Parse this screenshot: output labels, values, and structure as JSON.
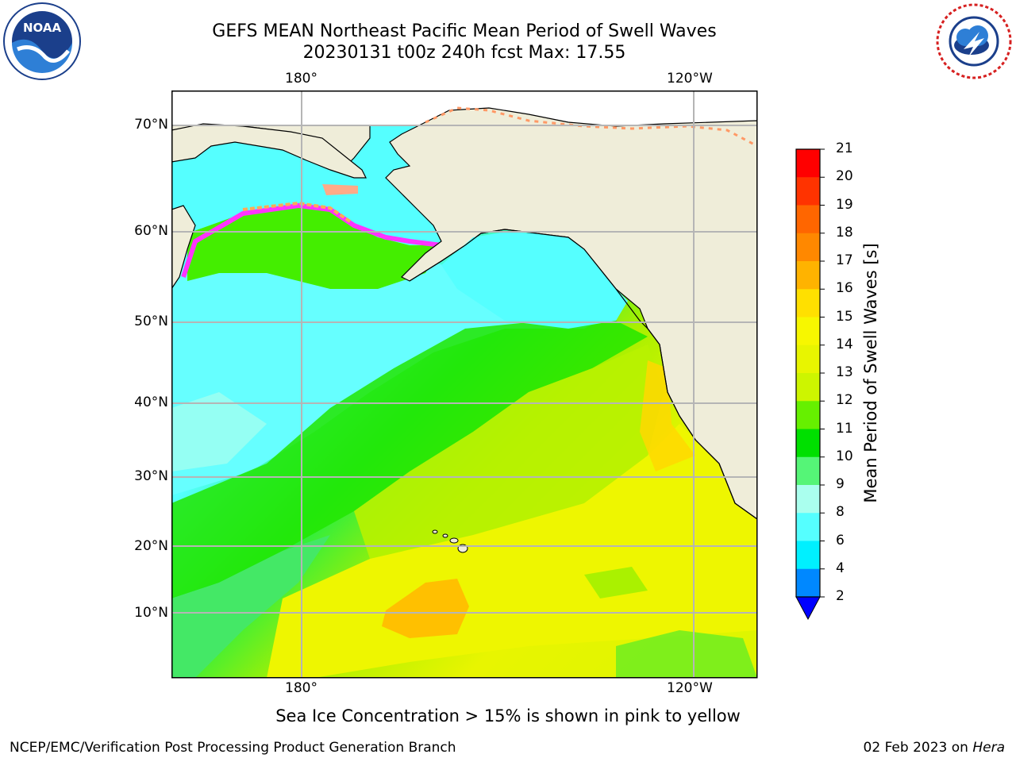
{
  "header": {
    "title": "GEFS MEAN Northeast Pacific Mean Period of Swell Waves",
    "subtitle": "20230131 t00z 240h fcst   Max: 17.55"
  },
  "logos": {
    "noaa": {
      "text": "NOAA",
      "ring_text": "NATIONAL OCEANIC AND ATMOSPHERIC ADMINISTRATION · U.S. DEPARTMENT OF COMMERCE",
      "icon": "noaa-logo-icon"
    },
    "nws": {
      "ring_text": "NATIONAL WEATHER SERVICE",
      "icon": "nws-logo-icon"
    }
  },
  "map": {
    "lon_labels": [
      "180°",
      "120°W"
    ],
    "lat_labels": [
      "70°N",
      "60°N",
      "50°N",
      "40°N",
      "30°N",
      "20°N",
      "10°N"
    ],
    "colors": {
      "land": "#efedd9",
      "grid": "#b5b5b5",
      "coast": "#000000"
    }
  },
  "colorbar": {
    "label": "Mean Period of Swell Waves [s]",
    "ticks": [
      "21",
      "20",
      "19",
      "18",
      "17",
      "16",
      "15",
      "14",
      "13",
      "12",
      "11",
      "10",
      "9",
      "8",
      "6",
      "4",
      "2"
    ],
    "colors": [
      "#ff0000",
      "#ff3300",
      "#ff6600",
      "#ff8800",
      "#ffb300",
      "#ffe000",
      "#f7f700",
      "#e8f500",
      "#cdf500",
      "#99f500",
      "#55ee00",
      "#00e000",
      "#55f577",
      "#aaffee",
      "#55ffff",
      "#00f0ff",
      "#00ccff",
      "#0088ff",
      "#0000ff"
    ]
  },
  "footer": {
    "note": "Sea Ice Concentration > 15% is shown in pink to yellow",
    "left": "NCEP/EMC/Verification Post Processing Product Generation Branch",
    "date": "02 Feb 2023 on",
    "machine": "Hera"
  }
}
